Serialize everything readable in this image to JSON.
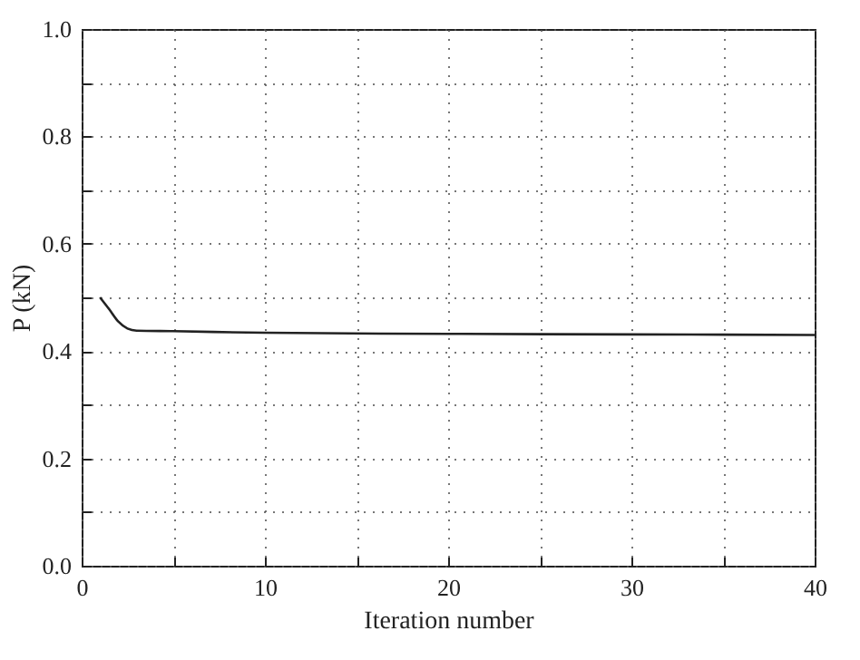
{
  "chart_data": {
    "type": "line",
    "xlabel": "Iteration number",
    "ylabel": "P (kN)",
    "x": [
      1,
      1.5,
      2,
      2.5,
      3,
      5,
      10,
      20,
      30,
      40
    ],
    "series": [
      {
        "color": "#222222",
        "values": [
          0.5,
          0.478,
          0.455,
          0.442,
          0.438,
          0.437,
          0.434,
          0.432,
          0.431,
          0.43
        ]
      }
    ],
    "xlim": [
      0,
      40
    ],
    "xticks": [
      0,
      {
        "value": 5,
        "label": null
      },
      10,
      {
        "value": 15,
        "label": null
      },
      20,
      {
        "value": 25,
        "label": null
      },
      30,
      {
        "value": 35,
        "label": null
      },
      40
    ],
    "ylim": [
      0,
      1
    ],
    "yticks": [
      {
        "value": 0,
        "label": "0.0"
      },
      {
        "value": 0.1,
        "label": null
      },
      {
        "value": 0.2,
        "label": "0.2"
      },
      {
        "value": 0.3,
        "label": null
      },
      {
        "value": 0.4,
        "label": "0.4"
      },
      {
        "value": 0.5,
        "label": null
      },
      {
        "value": 0.6,
        "label": "0.6"
      },
      {
        "value": 0.7,
        "label": null
      },
      {
        "value": 0.8,
        "label": "0.8"
      },
      {
        "value": 0.9,
        "label": null
      },
      {
        "value": 1,
        "label": "1.0"
      }
    ],
    "grid": true,
    "marker": "none",
    "line_style": "solid"
  }
}
